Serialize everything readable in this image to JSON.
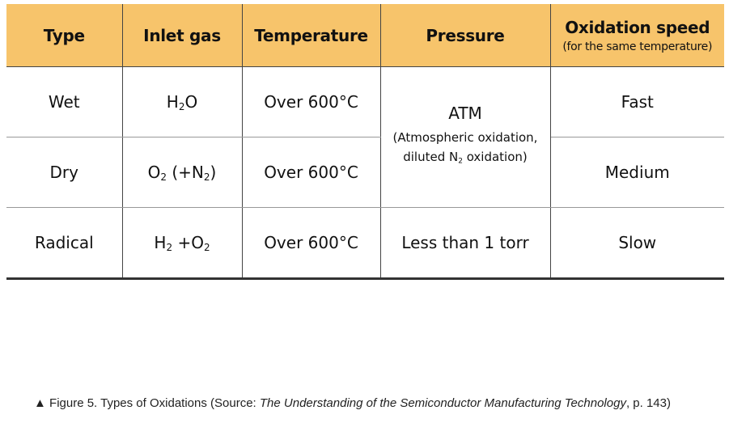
{
  "table": {
    "header": [
      "Type",
      "Inlet gas",
      "Temperature",
      "Pressure",
      {
        "title": "Oxidation speed",
        "note": "(for the same temperature)"
      }
    ],
    "rows": [
      {
        "type": "Wet",
        "gas": [
          "H",
          "2",
          "O"
        ],
        "temperature": "Over 600°C",
        "pressure": {
          "main": "ATM",
          "note_line1": "(Atmospheric oxidation,",
          "note_line2": [
            "diluted N",
            "2",
            " oxidation)"
          ]
        },
        "speed": "Fast"
      },
      {
        "type": "Dry",
        "gas": [
          "O",
          "2",
          " (+N",
          "2",
          ")"
        ],
        "temperature": "Over 600°C",
        "speed": "Medium"
      },
      {
        "type": "Radical",
        "gas": [
          "H",
          "2",
          " +O",
          "2"
        ],
        "temperature": "Over 600°C",
        "pressure": "Less than 1 torr",
        "speed": "Slow"
      }
    ]
  },
  "caption": {
    "marker": "▲",
    "prefix": "Figure 5. Types of Oxidations (Source: ",
    "source_title": "The Understanding of the Semiconductor Manufacturing Technology",
    "suffix": ", p. 143)"
  }
}
